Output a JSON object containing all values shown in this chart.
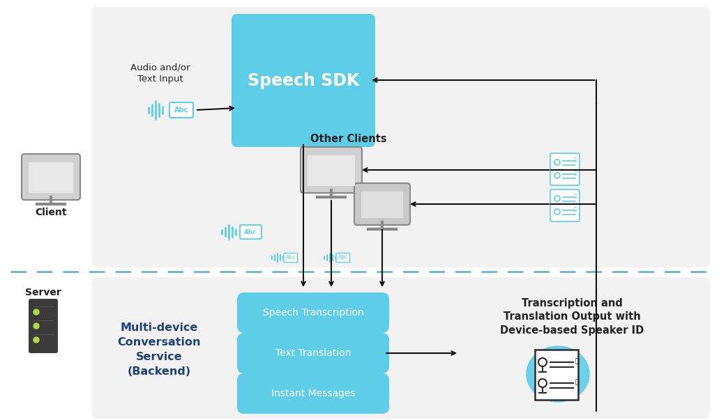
{
  "bg": "#ffffff",
  "panel_bg": "#f2f2f2",
  "cyan": "#5dcde8",
  "dark_blue": "#1e3f7a",
  "arrow_col": "#111111",
  "dash_col": "#5aabdb",
  "white": "#ffffff",
  "gray_body": "#d4d4d4",
  "gray_screen": "#b8b8b8",
  "gray_edge": "#999999",
  "server_body": "#3a3a3a",
  "green_led": "#b0d840",
  "text_dark": "#222222",
  "speech_sdk_text": "Speech SDK",
  "audio_text": "Audio and/or\nText Input",
  "other_clients_text": "Other Clients",
  "client_text": "Client",
  "server_text": "Server",
  "multidevice_text": "Multi-device\nConversation\nService\n(Backend)",
  "transcription_text": "Transcription and\nTranslation Output with\nDevice-based Speaker ID",
  "service_labels": [
    "Speech Transcription",
    "Text Translation",
    "Instant Messages"
  ],
  "fig_w": 10.31,
  "fig_h": 6.03,
  "dpi": 100
}
